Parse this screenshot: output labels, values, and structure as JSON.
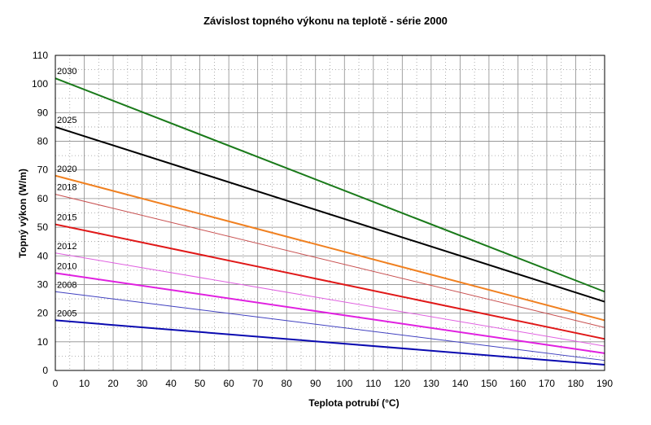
{
  "chart_data": {
    "type": "line",
    "title": "Závislost topného výkonu na teplotě - série 2000",
    "xlabel": "Teplota potrubí (°C)",
    "ylabel": "Topný výkon (W/m)",
    "xlim": [
      0,
      190
    ],
    "ylim": [
      0,
      110
    ],
    "xticks": [
      0,
      10,
      20,
      30,
      40,
      50,
      60,
      70,
      80,
      90,
      100,
      110,
      120,
      130,
      140,
      150,
      160,
      170,
      180,
      190
    ],
    "yticks": [
      0,
      10,
      20,
      30,
      40,
      50,
      60,
      70,
      80,
      90,
      100,
      110
    ],
    "grid": true,
    "legend": "none (labels at line starts)",
    "series": [
      {
        "name": "2030",
        "color": "#1a7a1a",
        "width": 2,
        "x": [
          0,
          190
        ],
        "y": [
          102,
          27.5
        ]
      },
      {
        "name": "2025",
        "color": "#000000",
        "width": 2,
        "x": [
          0,
          190
        ],
        "y": [
          85,
          24
        ]
      },
      {
        "name": "2020",
        "color": "#f08020",
        "width": 2,
        "x": [
          0,
          190
        ],
        "y": [
          68,
          17.5
        ]
      },
      {
        "name": "2018",
        "color": "#c85050",
        "width": 1,
        "x": [
          0,
          190
        ],
        "y": [
          61.5,
          15
        ]
      },
      {
        "name": "2015",
        "color": "#e01818",
        "width": 2,
        "x": [
          0,
          190
        ],
        "y": [
          51,
          11
        ]
      },
      {
        "name": "2012",
        "color": "#e060e0",
        "width": 1,
        "x": [
          0,
          190
        ],
        "y": [
          41,
          8.5
        ]
      },
      {
        "name": "2010",
        "color": "#e020e0",
        "width": 2,
        "x": [
          0,
          190
        ],
        "y": [
          34,
          6
        ]
      },
      {
        "name": "2008",
        "color": "#4040c0",
        "width": 1,
        "x": [
          0,
          190
        ],
        "y": [
          27.5,
          3.5
        ]
      },
      {
        "name": "2005",
        "color": "#0a0ab0",
        "width": 2,
        "x": [
          0,
          190
        ],
        "y": [
          17.5,
          2
        ]
      }
    ]
  }
}
